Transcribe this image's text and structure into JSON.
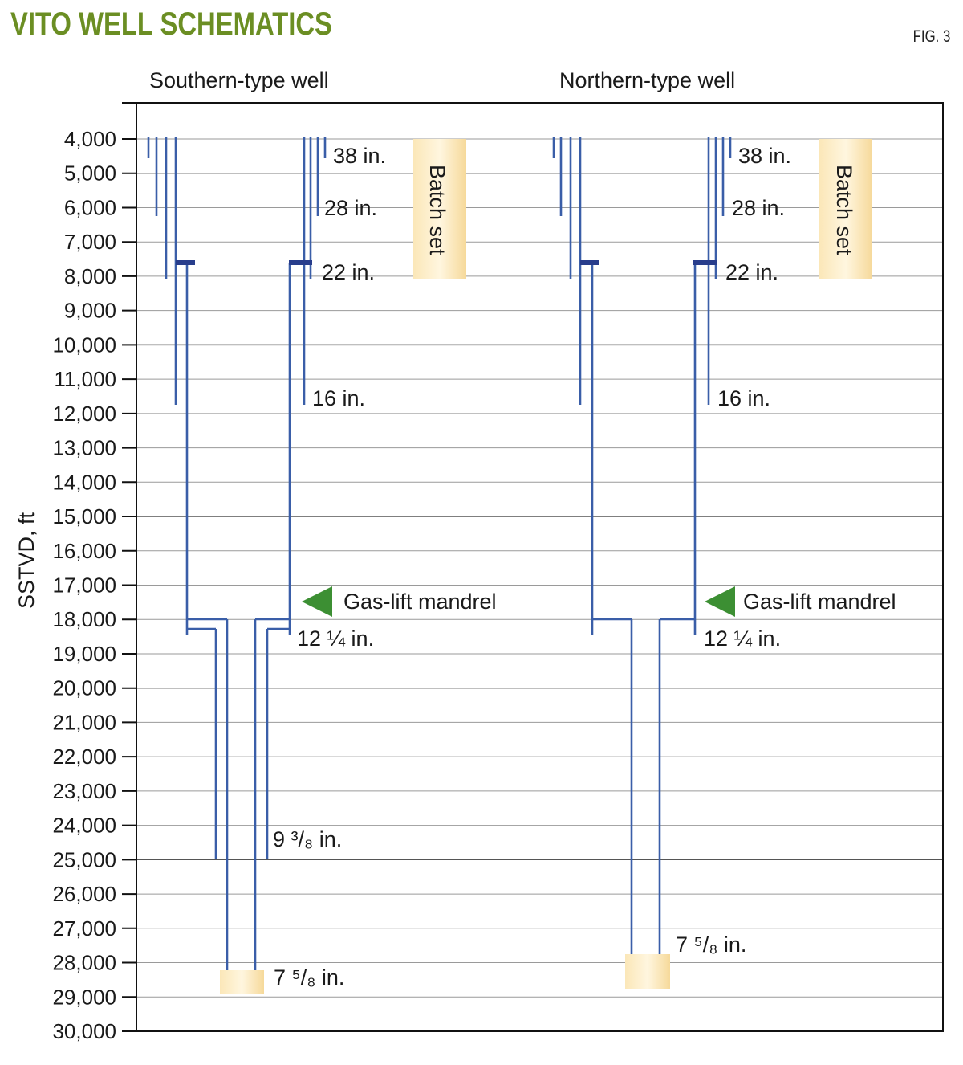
{
  "title": "VITO WELL SCHEMATICS",
  "figure_label": "FIG. 3",
  "y_axis_label": "SSTVD, ft",
  "headers": {
    "southern": "Southern-type well",
    "northern": "Northern-type well"
  },
  "depth_ticks": [
    "4,000",
    "5,000",
    "6,000",
    "7,000",
    "8,000",
    "9,000",
    "10,000",
    "11,000",
    "12,000",
    "13,000",
    "14,000",
    "15,000",
    "16,000",
    "17,000",
    "18,000",
    "19,000",
    "20,000",
    "21,000",
    "22,000",
    "23,000",
    "24,000",
    "25,000",
    "26,000",
    "27,000",
    "28,000",
    "29,000",
    "30,000"
  ],
  "labels": {
    "casing_38": "38 in.",
    "casing_28": "28 in.",
    "casing_22": "22 in.",
    "casing_16": "16 in.",
    "casing_12": "12 ¼ in.",
    "casing_9": "9 ³/₈ in.",
    "casing_7": "7 ⁵/₈ in.",
    "batch_set": "Batch set",
    "gas_lift": "Gas-lift mandrel"
  },
  "colors": {
    "casing": "#3a5ea8",
    "hanger": "#283d8c",
    "mandrel": "#3c8f33",
    "batch": "#f7dfa8",
    "title": "#6b8e23"
  }
}
